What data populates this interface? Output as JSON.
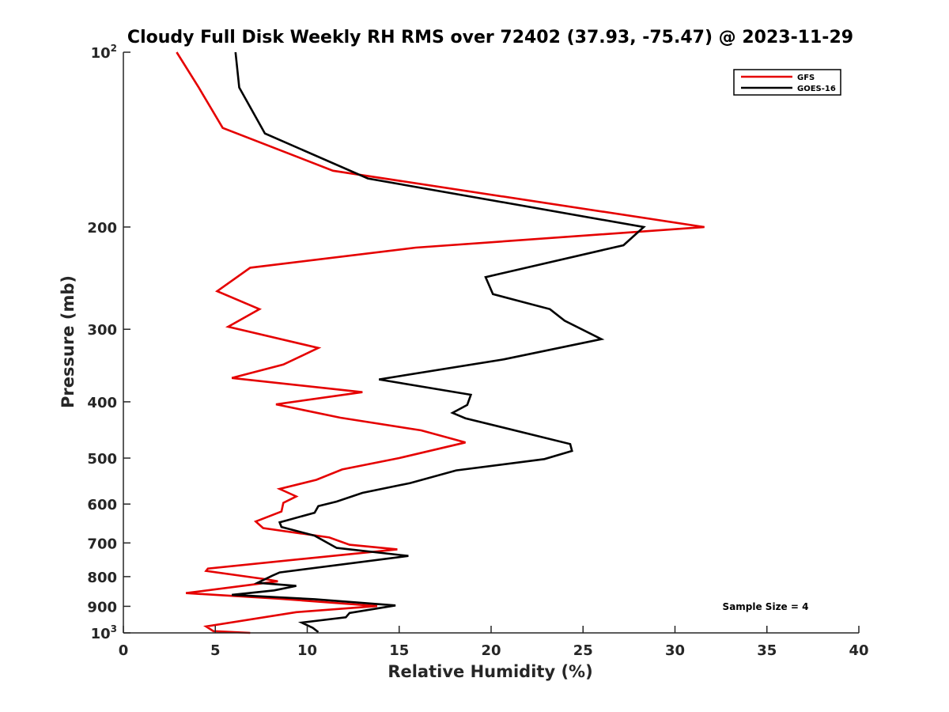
{
  "chart_data": {
    "type": "line",
    "title": "Cloudy Full Disk Weekly RH RMS over 72402 (37.93, -75.47) @ 2023-11-29",
    "xlabel": "Relative Humidity (%)",
    "ylabel": "Pressure (mb)",
    "xlim": [
      0,
      40
    ],
    "ylim": [
      100,
      1000
    ],
    "y_scale": "log",
    "y_reversed": true,
    "x_ticks": [
      0,
      5,
      10,
      15,
      20,
      25,
      30,
      35,
      40
    ],
    "y_ticks": [
      {
        "value": 100,
        "label": "10",
        "sup": "2"
      },
      {
        "value": 200,
        "label": "200"
      },
      {
        "value": 300,
        "label": "300"
      },
      {
        "value": 400,
        "label": "400"
      },
      {
        "value": 500,
        "label": "500"
      },
      {
        "value": 600,
        "label": "600"
      },
      {
        "value": 700,
        "label": "700"
      },
      {
        "value": 800,
        "label": "800"
      },
      {
        "value": 900,
        "label": "900"
      },
      {
        "value": 1000,
        "label": "10",
        "sup": "3"
      }
    ],
    "grid": false,
    "legend_position": "top-right",
    "series": [
      {
        "name": "GFS",
        "color": "#e50000",
        "points": [
          [
            2.9,
            100
          ],
          [
            4.1,
            115
          ],
          [
            5.4,
            135
          ],
          [
            11.4,
            160
          ],
          [
            31.6,
            200
          ],
          [
            15.9,
            217
          ],
          [
            6.9,
            235
          ],
          [
            5.1,
            258
          ],
          [
            7.4,
            277
          ],
          [
            5.7,
            297
          ],
          [
            10.6,
            323
          ],
          [
            8.7,
            345
          ],
          [
            5.9,
            364
          ],
          [
            13,
            385
          ],
          [
            8.3,
            404
          ],
          [
            11.8,
            426
          ],
          [
            16.2,
            448
          ],
          [
            18.6,
            470
          ],
          [
            15,
            500
          ],
          [
            11.9,
            523
          ],
          [
            10.5,
            545
          ],
          [
            8.5,
            565
          ],
          [
            9.4,
            582
          ],
          [
            8.7,
            597
          ],
          [
            8.6,
            618
          ],
          [
            7.2,
            643
          ],
          [
            7.6,
            660
          ],
          [
            11.2,
            685
          ],
          [
            12.3,
            705
          ],
          [
            14.9,
            718
          ],
          [
            4.6,
            775
          ],
          [
            4.5,
            782
          ],
          [
            7.8,
            809
          ],
          [
            8.4,
            815
          ],
          [
            3.4,
            854
          ],
          [
            8.4,
            873
          ],
          [
            13.8,
            899
          ],
          [
            9.4,
            921
          ],
          [
            4.5,
            975
          ],
          [
            4.9,
            993
          ],
          [
            6.9,
            1000
          ]
        ]
      },
      {
        "name": "GOES-16",
        "color": "#000000",
        "points": [
          [
            6.1,
            100
          ],
          [
            6.3,
            115
          ],
          [
            7.7,
            138
          ],
          [
            13.3,
            165
          ],
          [
            28.3,
            200
          ],
          [
            27.2,
            215
          ],
          [
            19.7,
            244
          ],
          [
            20.1,
            261
          ],
          [
            23.2,
            277
          ],
          [
            24,
            290
          ],
          [
            26,
            312
          ],
          [
            20.7,
            338
          ],
          [
            13.9,
            366
          ],
          [
            18.9,
            389
          ],
          [
            18.7,
            405
          ],
          [
            17.9,
            418
          ],
          [
            18.6,
            427
          ],
          [
            24.3,
            473
          ],
          [
            24.4,
            486
          ],
          [
            22.9,
            502
          ],
          [
            18.1,
            525
          ],
          [
            15.6,
            552
          ],
          [
            13,
            574
          ],
          [
            11.6,
            594
          ],
          [
            10.6,
            605
          ],
          [
            10.4,
            621
          ],
          [
            8.9,
            640
          ],
          [
            8.5,
            645
          ],
          [
            8.6,
            657
          ],
          [
            10.4,
            680
          ],
          [
            11.6,
            714
          ],
          [
            15.5,
            737
          ],
          [
            8.5,
            787
          ],
          [
            8.1,
            797
          ],
          [
            7.3,
            820
          ],
          [
            9.4,
            830
          ],
          [
            8.2,
            845
          ],
          [
            5.9,
            860
          ],
          [
            10.4,
            875
          ],
          [
            14.8,
            897
          ],
          [
            12.3,
            924
          ],
          [
            12.1,
            940
          ],
          [
            9.7,
            960
          ],
          [
            10.3,
            980
          ],
          [
            10.6,
            997
          ]
        ]
      }
    ],
    "annotations": [
      {
        "text": "Sample Size = 4"
      }
    ]
  }
}
